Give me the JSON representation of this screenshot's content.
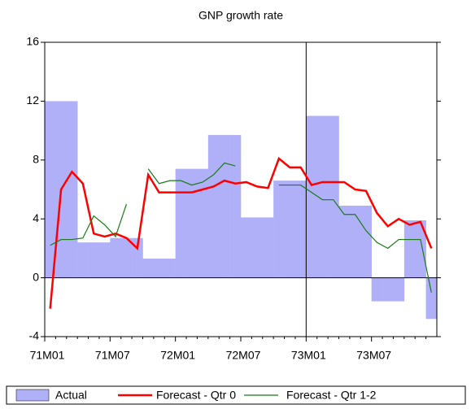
{
  "chart_data": {
    "type": "bar-line",
    "title": "GNP growth rate",
    "categories": [
      "71M01",
      null,
      null,
      null,
      null,
      null,
      "71M07",
      null,
      null,
      null,
      null,
      null,
      "72M01",
      null,
      null,
      null,
      null,
      null,
      "72M07",
      null,
      null,
      null,
      null,
      null,
      "73M01",
      null,
      null,
      null,
      null,
      null,
      "73M07",
      null,
      null,
      null,
      null,
      null
    ],
    "series": [
      {
        "name": "Actual",
        "kind": "bar",
        "color": "#b0b0f8",
        "values": [
          12.0,
          12.0,
          12.0,
          2.4,
          2.4,
          2.4,
          2.7,
          2.7,
          2.7,
          1.3,
          1.3,
          1.3,
          7.4,
          7.4,
          7.4,
          9.7,
          9.7,
          9.7,
          4.1,
          4.1,
          4.1,
          6.6,
          6.6,
          6.6,
          11.0,
          11.0,
          11.0,
          4.9,
          4.9,
          4.9,
          -1.6,
          -1.6,
          -1.6,
          3.9,
          3.9,
          -2.8
        ]
      },
      {
        "name": "Forecast - Qtr 0",
        "kind": "line",
        "color": "#ff0000",
        "width": 2.5,
        "values": [
          -2.1,
          6.0,
          7.2,
          6.4,
          3.0,
          2.8,
          3.0,
          2.7,
          2.0,
          7.0,
          5.8,
          5.8,
          5.8,
          5.8,
          6.0,
          6.2,
          6.6,
          6.4,
          6.5,
          6.2,
          6.1,
          8.1,
          7.5,
          7.5,
          6.3,
          6.5,
          6.5,
          6.5,
          6.0,
          5.9,
          4.4,
          3.5,
          4.0,
          3.6,
          3.8,
          2.0
        ]
      },
      {
        "name": "Forecast - Qtr 1-2",
        "kind": "line",
        "color": "#1a7a1a",
        "width": 1.2,
        "values": [
          2.2,
          2.6,
          2.6,
          2.7,
          4.2,
          3.6,
          2.8,
          5.0,
          null,
          7.4,
          6.4,
          6.6,
          6.6,
          6.3,
          6.5,
          7.0,
          7.8,
          7.6,
          null,
          null,
          null,
          6.3,
          6.3,
          6.3,
          5.8,
          5.3,
          5.3,
          4.3,
          4.3,
          3.2,
          2.4,
          2.0,
          2.6,
          2.6,
          2.6,
          -1.0
        ]
      }
    ],
    "ylim": [
      -4,
      16
    ],
    "yticks": [
      -4,
      0,
      4,
      8,
      12,
      16
    ],
    "vline": "73M01",
    "zero_line": true,
    "legend": "bottom"
  }
}
